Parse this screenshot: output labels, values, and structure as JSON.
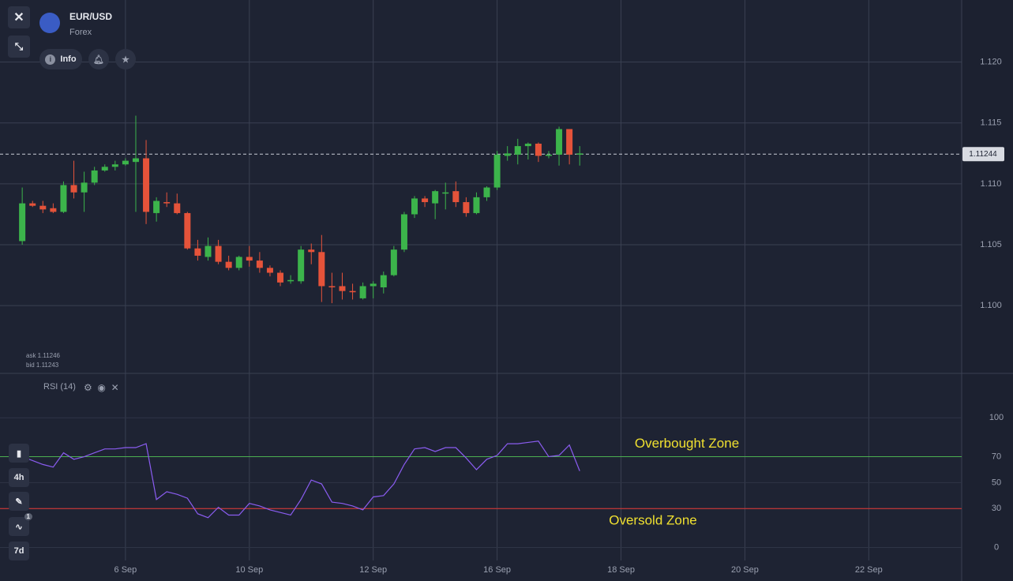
{
  "header": {
    "symbol": "EUR/USD",
    "market": "Forex",
    "info_button": "Info"
  },
  "quote": {
    "ask": "ask 1.11246",
    "bid": "bid 1.11243"
  },
  "indicator": {
    "name": "RSI (14)"
  },
  "toolbar": {
    "timeframe": "4h",
    "indicator_count": "1",
    "period": "7d"
  },
  "chart_data": [
    {
      "type": "candlestick",
      "up_color": "#3cb44b",
      "down_color": "#e5533a",
      "grid": true,
      "xlim": [
        -2,
        91
      ],
      "ylim": [
        1.0945,
        1.1251
      ],
      "xticks": [
        {
          "value": 10,
          "label": "6 Sep"
        },
        {
          "value": 22,
          "label": "10 Sep"
        },
        {
          "value": 34,
          "label": "12 Sep"
        },
        {
          "value": 46,
          "label": "16 Sep"
        },
        {
          "value": 58,
          "label": "18 Sep"
        },
        {
          "value": 70,
          "label": "20 Sep"
        },
        {
          "value": 82,
          "label": "22 Sep"
        }
      ],
      "yticks": [
        {
          "value": 1.1,
          "label": "1.100"
        },
        1.105,
        {
          "value": 1.11,
          "label": "1.110"
        },
        1.115,
        {
          "value": 1.12,
          "label": "1.120"
        }
      ],
      "current_price": 1.11244,
      "open": [
        1.1053,
        1.1084,
        1.1082,
        1.108,
        1.1077,
        1.1099,
        1.1093,
        1.1101,
        1.1111,
        1.1114,
        1.1116,
        1.1118,
        1.1121,
        1.1076,
        1.1085,
        1.1084,
        1.1076,
        1.1047,
        1.104,
        1.1049,
        1.1036,
        1.1031,
        1.104,
        1.1037,
        1.1031,
        1.1027,
        1.102,
        1.102,
        1.1046,
        1.1044,
        1.1016,
        1.1016,
        1.1012,
        1.1006,
        1.1016,
        1.1015,
        1.1025,
        1.1046,
        1.1075,
        1.1088,
        1.1084,
        1.1092,
        1.1094,
        1.1085,
        1.1076,
        1.1089,
        1.1097,
        1.1123,
        1.1124,
        1.1131,
        1.1133,
        1.1123,
        1.1124,
        1.1145,
        1.1124
      ],
      "high": [
        1.1097,
        1.1086,
        1.1086,
        1.1084,
        1.1102,
        1.1119,
        1.111,
        1.1114,
        1.1116,
        1.1119,
        1.1121,
        1.1156,
        1.1136,
        1.1089,
        1.1093,
        1.1092,
        1.1077,
        1.1054,
        1.1056,
        1.1054,
        1.1041,
        1.1041,
        1.1049,
        1.1044,
        1.1033,
        1.1029,
        1.1025,
        1.1049,
        1.1051,
        1.1058,
        1.1027,
        1.1027,
        1.1018,
        1.1019,
        1.102,
        1.1028,
        1.1049,
        1.1077,
        1.109,
        1.109,
        1.1095,
        1.1101,
        1.1102,
        1.1089,
        1.1093,
        1.1098,
        1.1127,
        1.1131,
        1.1137,
        1.1134,
        1.1134,
        1.1127,
        1.1147,
        1.1145,
        1.1131
      ],
      "low": [
        1.105,
        1.1081,
        1.1076,
        1.1076,
        1.1076,
        1.1088,
        1.1077,
        1.1099,
        1.111,
        1.1111,
        1.1115,
        1.1077,
        1.1067,
        1.1069,
        1.1081,
        1.1075,
        1.1046,
        1.1037,
        1.1037,
        1.1034,
        1.1029,
        1.1029,
        1.1032,
        1.1027,
        1.1024,
        1.1016,
        1.1018,
        1.1018,
        1.1034,
        1.1003,
        1.1002,
        1.1005,
        1.1005,
        1.1005,
        1.1006,
        1.101,
        1.1024,
        1.1044,
        1.1072,
        1.1081,
        1.1071,
        1.1079,
        1.1081,
        1.1073,
        1.1075,
        1.1086,
        1.1095,
        1.1119,
        1.1116,
        1.112,
        1.1118,
        1.1121,
        1.1115,
        1.1116,
        1.1115
      ],
      "close": [
        1.1084,
        1.1082,
        1.1079,
        1.1077,
        1.1099,
        1.1093,
        1.1101,
        1.1111,
        1.1114,
        1.1116,
        1.1119,
        1.1121,
        1.1077,
        1.1086,
        1.1084,
        1.1076,
        1.1047,
        1.1041,
        1.1049,
        1.1036,
        1.1031,
        1.104,
        1.1037,
        1.1031,
        1.1027,
        1.1019,
        1.1021,
        1.1046,
        1.1044,
        1.1016,
        1.1015,
        1.1012,
        1.1011,
        1.1016,
        1.1018,
        1.1025,
        1.1046,
        1.1075,
        1.1088,
        1.1085,
        1.1094,
        1.1093,
        1.1085,
        1.1076,
        1.1089,
        1.1097,
        1.1124,
        1.1125,
        1.1131,
        1.1133,
        1.1123,
        1.1124,
        1.1145,
        1.1124,
        1.1125
      ]
    },
    {
      "type": "line",
      "color": "#8a5cf0",
      "xlim": [
        -2,
        91
      ],
      "ylim": [
        -24,
        133
      ],
      "yticks": [
        0,
        30,
        50,
        70,
        100
      ],
      "values": [
        70,
        67,
        64,
        62,
        73,
        68,
        70,
        73,
        76,
        76,
        77,
        77,
        80,
        37,
        43,
        41,
        38,
        26,
        23,
        31,
        25,
        25,
        34,
        32,
        29,
        27,
        25,
        37,
        52,
        49,
        35,
        34,
        32,
        29,
        39,
        40,
        49,
        64,
        76,
        77,
        74,
        77,
        77,
        69,
        60,
        68,
        71,
        80,
        80,
        81,
        82,
        70,
        71,
        79,
        59
      ],
      "reference_lines": [
        {
          "value": 70,
          "color": "#4caf50",
          "label": "Overbought Zone"
        },
        {
          "value": 30,
          "color": "#e53935",
          "label": "Oversold Zone"
        }
      ]
    }
  ]
}
